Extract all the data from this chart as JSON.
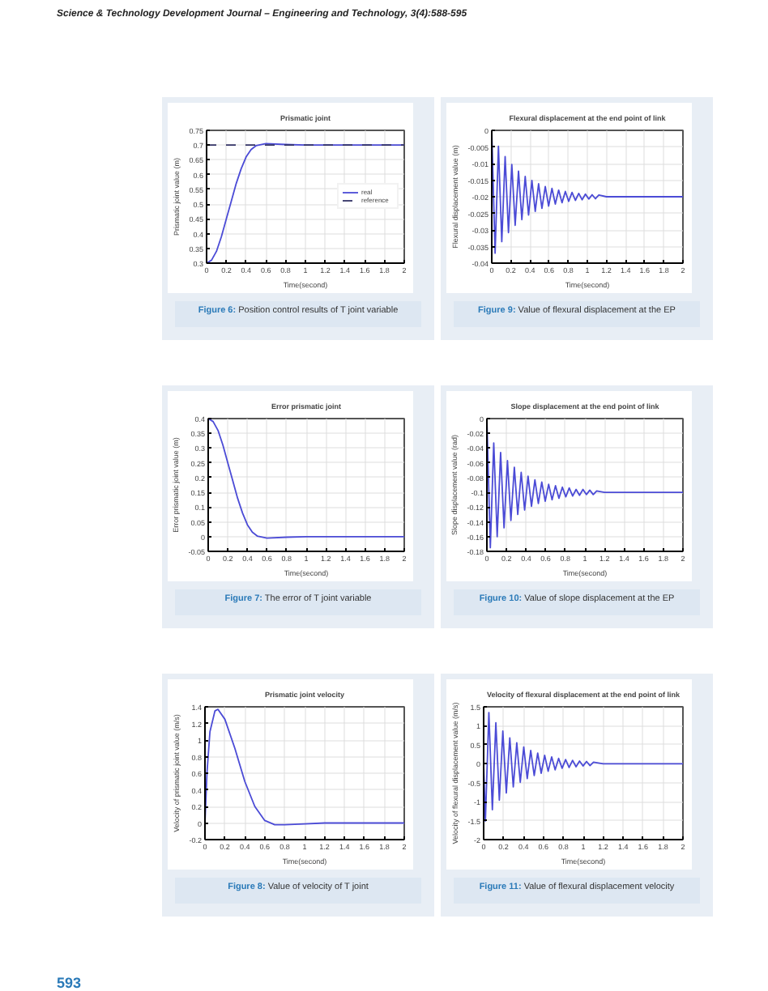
{
  "chart_data": [
    {
      "type": "line",
      "title": "Prismatic joint",
      "xlabel": "Time(second)",
      "ylabel": "Prismatic joint value (m)",
      "xlim": [
        0,
        2
      ],
      "ylim": [
        0.3,
        0.75
      ],
      "xticks": [
        0,
        0.2,
        0.4,
        0.6,
        0.8,
        1,
        1.2,
        1.4,
        1.6,
        1.8,
        2
      ],
      "yticks": [
        0.3,
        0.35,
        0.4,
        0.45,
        0.5,
        0.55,
        0.6,
        0.65,
        0.7,
        0.75
      ],
      "grid": true,
      "legend": "right",
      "series": [
        {
          "name": "real",
          "color": "#4b4bd6",
          "x": [
            0,
            0.05,
            0.1,
            0.15,
            0.2,
            0.25,
            0.3,
            0.35,
            0.4,
            0.45,
            0.5,
            0.6,
            0.8,
            1,
            2
          ],
          "values": [
            0.3,
            0.31,
            0.34,
            0.39,
            0.45,
            0.51,
            0.57,
            0.62,
            0.66,
            0.685,
            0.698,
            0.705,
            0.702,
            0.7,
            0.7
          ]
        },
        {
          "name": "reference",
          "color": "#333366",
          "line_style": "dashed",
          "x": [
            0,
            2
          ],
          "values": [
            0.7,
            0.7
          ]
        }
      ],
      "annotations": [
        "Figure 6: Position control results of T joint variable",
        "Science & Technology Development Journal – Engineering and Technology, 3(4):588-595"
      ]
    },
    {
      "type": "line",
      "title": "Flexural displacement at the end point of link",
      "xlabel": "Time(second)",
      "ylabel": "Flexural displacement value (m)",
      "xlim": [
        0,
        2
      ],
      "ylim": [
        -0.04,
        0
      ],
      "xticks": [
        0,
        0.2,
        0.4,
        0.6,
        0.8,
        1,
        1.2,
        1.4,
        1.6,
        1.8,
        2
      ],
      "yticks": [
        -0.04,
        -0.035,
        -0.03,
        -0.025,
        -0.02,
        -0.015,
        -0.01,
        -0.005,
        0
      ],
      "grid": true,
      "series": [
        {
          "color": "#4b4bd6",
          "x": [
            0,
            0.035,
            0.07,
            0.105,
            0.14,
            0.175,
            0.21,
            0.245,
            0.28,
            0.315,
            0.35,
            0.385,
            0.42,
            0.455,
            0.49,
            0.525,
            0.56,
            0.595,
            0.63,
            0.665,
            0.7,
            0.735,
            0.77,
            0.805,
            0.84,
            0.875,
            0.91,
            0.945,
            0.98,
            1.015,
            1.05,
            1.085,
            1.12,
            1.2,
            2
          ],
          "values": [
            0,
            -0.037,
            -0.0048,
            -0.0335,
            -0.0079,
            -0.0308,
            -0.0103,
            -0.0286,
            -0.0123,
            -0.0269,
            -0.0139,
            -0.0255,
            -0.0151,
            -0.0244,
            -0.0161,
            -0.0235,
            -0.0169,
            -0.0228,
            -0.0175,
            -0.0222,
            -0.018,
            -0.0218,
            -0.0184,
            -0.0214,
            -0.0187,
            -0.0211,
            -0.019,
            -0.0209,
            -0.0192,
            -0.0207,
            -0.0194,
            -0.0206,
            -0.0195,
            -0.02,
            -0.02
          ]
        }
      ],
      "annotations": [
        "Figure 9: Value of flexural displacement at the EP"
      ]
    },
    {
      "type": "line",
      "title": "Error prismatic joint",
      "xlabel": "Time(second)",
      "ylabel": "Error prismatic joint value (m)",
      "xlim": [
        0,
        2
      ],
      "ylim": [
        -0.05,
        0.4
      ],
      "xticks": [
        0,
        0.2,
        0.4,
        0.6,
        0.8,
        1,
        1.2,
        1.4,
        1.6,
        1.8,
        2
      ],
      "yticks": [
        -0.05,
        0,
        0.05,
        0.1,
        0.15,
        0.2,
        0.25,
        0.3,
        0.35,
        0.4
      ],
      "grid": true,
      "series": [
        {
          "color": "#4b4bd6",
          "x": [
            0,
            0.05,
            0.1,
            0.15,
            0.2,
            0.25,
            0.3,
            0.35,
            0.4,
            0.45,
            0.5,
            0.6,
            0.8,
            1,
            2
          ],
          "values": [
            0.4,
            0.39,
            0.36,
            0.31,
            0.25,
            0.19,
            0.13,
            0.08,
            0.04,
            0.015,
            0.002,
            -0.005,
            -0.002,
            0,
            0
          ]
        }
      ],
      "annotations": [
        "Figure 7: The error of T joint variable"
      ]
    },
    {
      "type": "line",
      "title": "Slope displacement at the end point of link",
      "xlabel": "Time(second)",
      "ylabel": "Slope displacement value (rad)",
      "xlim": [
        0,
        2
      ],
      "ylim": [
        -0.18,
        0
      ],
      "xticks": [
        0,
        0.2,
        0.4,
        0.6,
        0.8,
        1,
        1.2,
        1.4,
        1.6,
        1.8,
        2
      ],
      "yticks": [
        -0.18,
        -0.16,
        -0.14,
        -0.12,
        -0.1,
        -0.08,
        -0.06,
        -0.04,
        -0.02,
        0
      ],
      "grid": true,
      "series": [
        {
          "color": "#4b4bd6",
          "x": [
            0,
            0.035,
            0.07,
            0.105,
            0.14,
            0.175,
            0.21,
            0.245,
            0.28,
            0.315,
            0.35,
            0.385,
            0.42,
            0.455,
            0.49,
            0.525,
            0.56,
            0.595,
            0.63,
            0.665,
            0.7,
            0.735,
            0.77,
            0.805,
            0.84,
            0.875,
            0.91,
            0.945,
            0.98,
            1.015,
            1.05,
            1.085,
            1.12,
            1.2,
            2
          ],
          "values": [
            0,
            -0.175,
            -0.033,
            -0.16,
            -0.046,
            -0.148,
            -0.057,
            -0.138,
            -0.066,
            -0.13,
            -0.073,
            -0.124,
            -0.078,
            -0.119,
            -0.083,
            -0.115,
            -0.086,
            -0.112,
            -0.089,
            -0.11,
            -0.091,
            -0.108,
            -0.093,
            -0.106,
            -0.094,
            -0.105,
            -0.096,
            -0.104,
            -0.096,
            -0.103,
            -0.097,
            -0.103,
            -0.098,
            -0.1,
            -0.1
          ]
        }
      ],
      "annotations": [
        "Figure 10: Value of slope displacement at the EP"
      ]
    },
    {
      "type": "line",
      "title": "Prismatic joint velocity",
      "xlabel": "Time(second)",
      "ylabel": "Velocity of prismatic joint value (m/s)",
      "xlim": [
        0,
        2
      ],
      "ylim": [
        -0.2,
        1.4
      ],
      "xticks": [
        0,
        0.2,
        0.4,
        0.6,
        0.8,
        1,
        1.2,
        1.4,
        1.6,
        1.8,
        2
      ],
      "yticks": [
        -0.2,
        0,
        0.2,
        0.4,
        0.6,
        0.8,
        1,
        1.2,
        1.4
      ],
      "grid": true,
      "series": [
        {
          "color": "#4b4bd6",
          "x": [
            0,
            0.02,
            0.05,
            0.1,
            0.13,
            0.2,
            0.3,
            0.4,
            0.5,
            0.6,
            0.7,
            0.8,
            1,
            1.2,
            2
          ],
          "values": [
            0,
            0.6,
            1.1,
            1.35,
            1.37,
            1.25,
            0.9,
            0.5,
            0.2,
            0.03,
            -0.02,
            -0.02,
            -0.01,
            0,
            0
          ]
        }
      ],
      "annotations": [
        "Figure 8: Value of velocity of T joint"
      ]
    },
    {
      "type": "line",
      "title": "Velocity of flexural displacement at the end point of link",
      "xlabel": "Time(second)",
      "ylabel": "Velocity of flexural displacement value (m/s)",
      "xlim": [
        0,
        2
      ],
      "ylim": [
        -2,
        1.5
      ],
      "xticks": [
        0,
        0.2,
        0.4,
        0.6,
        0.8,
        1,
        1.2,
        1.4,
        1.6,
        1.8,
        2
      ],
      "yticks": [
        -2,
        -1.5,
        -1,
        -0.5,
        0,
        0.5,
        1,
        1.5
      ],
      "grid": true,
      "series": [
        {
          "color": "#4b4bd6",
          "x": [
            0,
            0.0175,
            0.0525,
            0.0875,
            0.1225,
            0.1575,
            0.1925,
            0.2275,
            0.2625,
            0.2975,
            0.3325,
            0.3675,
            0.4025,
            0.4375,
            0.4725,
            0.5075,
            0.5425,
            0.5775,
            0.6125,
            0.6475,
            0.6825,
            0.7175,
            0.7525,
            0.7875,
            0.8225,
            0.8575,
            0.8925,
            0.9275,
            0.9625,
            0.9975,
            1.0325,
            1.0675,
            1.1025,
            1.2,
            2
          ],
          "values": [
            0,
            -1.51,
            1.35,
            -1.21,
            1.08,
            -0.96,
            0.86,
            -0.77,
            0.68,
            -0.61,
            0.55,
            -0.49,
            0.44,
            -0.39,
            0.35,
            -0.31,
            0.28,
            -0.25,
            0.22,
            -0.2,
            0.18,
            -0.16,
            0.14,
            -0.12,
            0.11,
            -0.1,
            0.09,
            -0.08,
            0.07,
            -0.06,
            0.06,
            -0.05,
            0.04,
            0,
            0
          ]
        }
      ],
      "annotations": [
        "Figure 11: Value of flexural displacement velocity",
        "593"
      ]
    }
  ]
}
